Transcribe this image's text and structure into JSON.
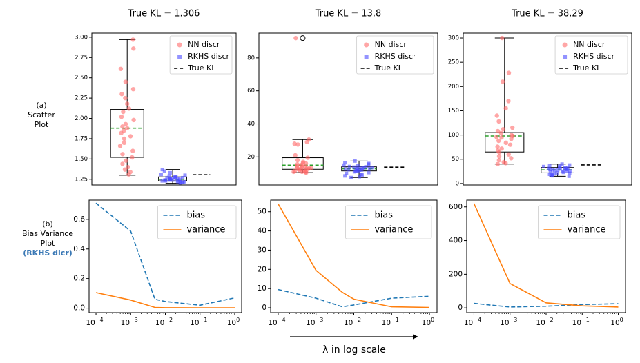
{
  "figure": {
    "row_a": {
      "line1": "(a)",
      "line2": "Scatter",
      "line3": "Plot"
    },
    "row_b": {
      "line1": "(b)",
      "line2": "Bias  Variance",
      "line3": "Plot",
      "line4": "(RKHS dicr)"
    },
    "x_axis_caption": "λ in log scale",
    "colors": {
      "nn": "#ff6b6b",
      "rkhs": "#4b4bff",
      "median": "#2ca02c",
      "true_kl": "#000000",
      "bias": "#1f77b4",
      "variance": "#ff7f0e"
    }
  },
  "chart_data": [
    {
      "type": "box-scatter",
      "title": "True KL = 1.306",
      "ylim": [
        1.18,
        3.05
      ],
      "yticks": [
        1.25,
        1.5,
        1.75,
        2.0,
        2.25,
        2.5,
        2.75,
        3.0
      ],
      "ytick_labels": [
        "1.25",
        "1.50",
        "1.75",
        "2.00",
        "2.25",
        "2.50",
        "2.75",
        "3.00"
      ],
      "legend": [
        "NN discr",
        "RKHS discr",
        "True KL"
      ],
      "legend_position": "top-right",
      "true_kl": 1.306,
      "nn": {
        "min": 1.3,
        "q1": 1.52,
        "median": 1.88,
        "q3": 2.11,
        "max": 2.97,
        "points": [
          2.97,
          2.86,
          2.61,
          2.45,
          2.36,
          2.3,
          2.25,
          2.18,
          2.12,
          2.08,
          2.02,
          1.98,
          1.93,
          1.9,
          1.88,
          1.85,
          1.82,
          1.78,
          1.75,
          1.7,
          1.66,
          1.6,
          1.56,
          1.52,
          1.48,
          1.44,
          1.4,
          1.37,
          1.34,
          1.31
        ]
      },
      "rkhs": {
        "min": 1.2,
        "q1": 1.23,
        "median": 1.25,
        "q3": 1.28,
        "max": 1.37,
        "points": [
          1.37,
          1.35,
          1.33,
          1.31,
          1.3,
          1.29,
          1.28,
          1.28,
          1.27,
          1.27,
          1.26,
          1.26,
          1.25,
          1.25,
          1.25,
          1.24,
          1.24,
          1.24,
          1.23,
          1.23,
          1.23,
          1.22,
          1.22,
          1.21,
          1.21,
          1.2,
          1.26,
          1.27,
          1.24,
          1.22
        ]
      }
    },
    {
      "type": "box-scatter",
      "title": "True KL = 13.8",
      "ylim": [
        3,
        95
      ],
      "yticks": [
        20,
        40,
        60,
        80
      ],
      "ytick_labels": [
        "20",
        "40",
        "60",
        "80"
      ],
      "legend": [
        "NN discr",
        "RKHS discr",
        "True KL"
      ],
      "legend_position": "top-right",
      "true_kl": 13.8,
      "nn": {
        "min": 10.5,
        "q1": 12.5,
        "median": 15,
        "q3": 19.5,
        "max": 30.5,
        "outlier": 92,
        "points": [
          92,
          30.5,
          29,
          28,
          27.5,
          21,
          19.5,
          18,
          17,
          16,
          15.5,
          15,
          14.5,
          14,
          13.5,
          13,
          13,
          12.5,
          12,
          12,
          11.5,
          11.5,
          11,
          11,
          10.8,
          10.5,
          16,
          14,
          12.8,
          13.2
        ]
      },
      "rkhs": {
        "min": 7.5,
        "q1": 11.5,
        "median": 12.8,
        "q3": 14,
        "max": 17.5,
        "points": [
          17.5,
          16.5,
          16,
          15.5,
          15,
          14.5,
          14.2,
          14,
          13.8,
          13.5,
          13.2,
          13,
          12.8,
          12.6,
          12.4,
          12.2,
          12,
          11.8,
          11.5,
          11.2,
          11,
          10.5,
          10,
          9.5,
          9,
          8.5,
          8,
          7.5,
          13.4,
          12.1
        ]
      }
    },
    {
      "type": "box-scatter",
      "title": "True KL = 38.29",
      "ylim": [
        -3,
        310
      ],
      "yticks": [
        0,
        50,
        100,
        150,
        200,
        250,
        300
      ],
      "ytick_labels": [
        "0",
        "50",
        "100",
        "150",
        "200",
        "250",
        "300"
      ],
      "legend": [
        "NN discr",
        "RKHS discr",
        "True KL"
      ],
      "legend_position": "top-right",
      "true_kl": 38.29,
      "nn": {
        "min": 40,
        "q1": 65,
        "median": 98,
        "q3": 105,
        "max": 300,
        "points": [
          300,
          228,
          210,
          170,
          155,
          140,
          128,
          115,
          112,
          108,
          104,
          100,
          98,
          96,
          92,
          88,
          84,
          80,
          76,
          72,
          68,
          64,
          60,
          56,
          52,
          48,
          44,
          42,
          40,
          95
        ]
      },
      "rkhs": {
        "min": 15,
        "q1": 22,
        "median": 28,
        "q3": 33,
        "max": 40,
        "points": [
          40,
          38,
          37,
          36,
          35,
          34,
          33,
          32,
          31,
          30,
          30,
          29,
          28,
          28,
          27,
          26,
          26,
          25,
          24,
          23,
          22,
          21,
          20,
          19,
          18,
          17,
          16,
          15,
          29,
          31
        ]
      }
    },
    {
      "type": "line",
      "xscale": "log",
      "x": [
        0.0001,
        0.001,
        0.005,
        0.01,
        0.1,
        1
      ],
      "xticks": [
        "10^-4",
        "10^-3",
        "10^-2",
        "10^-1",
        "10^0"
      ],
      "ylim": [
        -0.03,
        0.73
      ],
      "yticks": [
        0.0,
        0.2,
        0.4,
        0.6
      ],
      "ytick_labels": [
        "0.0",
        "0.2",
        "0.4",
        "0.6"
      ],
      "legend_position": "top-right",
      "series": [
        {
          "name": "bias",
          "style": "dashed",
          "values": [
            0.71,
            0.52,
            0.06,
            0.045,
            0.02,
            0.07
          ]
        },
        {
          "name": "variance",
          "style": "solid",
          "values": [
            0.105,
            0.055,
            0.005,
            0.003,
            0.002,
            0.002
          ]
        }
      ]
    },
    {
      "type": "line",
      "xscale": "log",
      "x": [
        0.0001,
        0.001,
        0.005,
        0.01,
        0.1,
        1
      ],
      "xticks": [
        "10^-4",
        "10^-3",
        "10^-2",
        "10^-1",
        "10^0"
      ],
      "ylim": [
        -2.5,
        56
      ],
      "yticks": [
        0,
        10,
        20,
        30,
        40,
        50
      ],
      "ytick_labels": [
        "0",
        "10",
        "20",
        "30",
        "40",
        "50"
      ],
      "legend_position": "top-right",
      "series": [
        {
          "name": "bias",
          "style": "dashed",
          "values": [
            9.5,
            5,
            0.5,
            1.5,
            5,
            6
          ]
        },
        {
          "name": "variance",
          "style": "solid",
          "values": [
            54,
            19.5,
            8,
            4.5,
            0.5,
            0.2
          ]
        }
      ]
    },
    {
      "type": "line",
      "xscale": "log",
      "x": [
        0.0001,
        0.001,
        0.01,
        0.1,
        1
      ],
      "xticks": [
        "10^-4",
        "10^-3",
        "10^-2",
        "10^-1",
        "10^0"
      ],
      "ylim": [
        -28,
        640
      ],
      "yticks": [
        0,
        200,
        400,
        600
      ],
      "ytick_labels": [
        "0",
        "200",
        "400",
        "600"
      ],
      "legend_position": "top-right",
      "series": [
        {
          "name": "bias",
          "style": "dashed",
          "values": [
            27,
            5,
            10,
            20,
            25
          ]
        },
        {
          "name": "variance",
          "style": "solid",
          "values": [
            620,
            145,
            30,
            12,
            5
          ]
        }
      ]
    }
  ]
}
